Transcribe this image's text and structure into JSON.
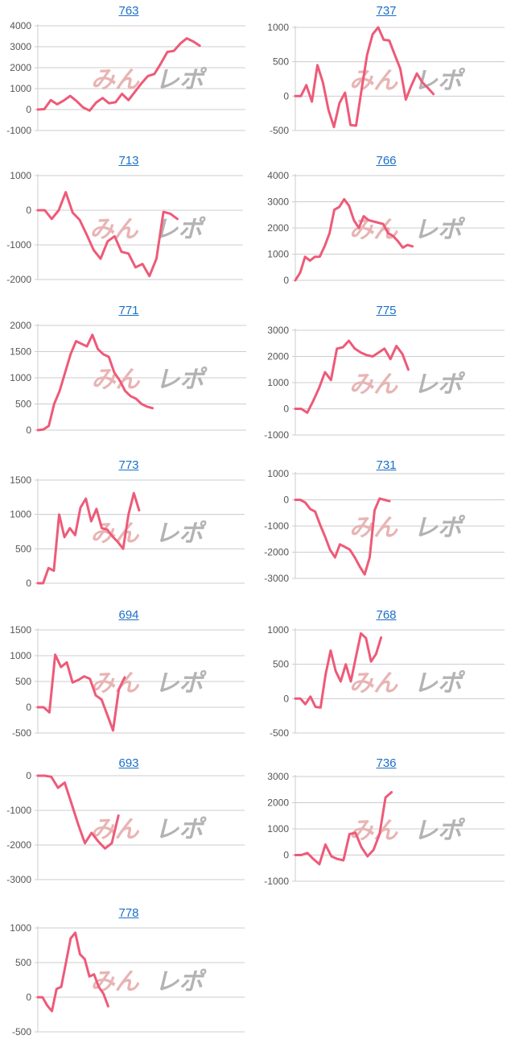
{
  "colors": {
    "line": "#ee5a78",
    "title": "#1a6fc9",
    "axis": "#cccccc",
    "tick_text": "#555555",
    "watermark_red": "#e8b4b4",
    "watermark_gray": "#b3b3b3"
  },
  "watermark": {
    "part1": "みん",
    "part2": "レポ"
  },
  "chart_data": [
    {
      "type": "line",
      "title": "763",
      "ylim": [
        -1000,
        4000
      ],
      "yticks": [
        -1000,
        0,
        1000,
        2000,
        3000,
        4000
      ],
      "y": [
        0,
        20,
        450,
        250,
        430,
        650,
        400,
        100,
        -50,
        330,
        550,
        300,
        350,
        750,
        450,
        850,
        1250,
        1600,
        1700,
        2200,
        2750,
        2800,
        3150,
        3400,
        3250,
        3050
      ]
    },
    {
      "type": "line",
      "title": "737",
      "ylim": [
        -500,
        1000
      ],
      "yticks": [
        -500,
        0,
        500,
        1000
      ],
      "y": [
        0,
        0,
        160,
        -80,
        450,
        200,
        -200,
        -450,
        -100,
        50,
        -420,
        -430,
        100,
        600,
        900,
        1000,
        820,
        810,
        600,
        400,
        -50,
        150,
        330,
        200,
        120,
        30
      ]
    },
    {
      "type": "line",
      "title": "713",
      "ylim": [
        -2000,
        1000
      ],
      "yticks": [
        -2000,
        -1000,
        0,
        1000
      ],
      "y": [
        0,
        0,
        -250,
        0,
        520,
        -70,
        -280,
        -700,
        -1150,
        -1400,
        -900,
        -750,
        -1200,
        -1250,
        -1650,
        -1550,
        -1900,
        -1400,
        -50,
        -100,
        -250
      ]
    },
    {
      "type": "line",
      "title": "766",
      "ylim": [
        0,
        4000
      ],
      "yticks": [
        0,
        1000,
        2000,
        3000,
        4000
      ],
      "y": [
        0,
        300,
        900,
        750,
        900,
        900,
        1300,
        1800,
        2700,
        2800,
        3100,
        2850,
        2300,
        2000,
        2450,
        2300,
        2250,
        2200,
        2150,
        1800,
        1700,
        1500,
        1250,
        1350,
        1300
      ]
    },
    {
      "type": "line",
      "title": "771",
      "ylim": [
        0,
        2000
      ],
      "yticks": [
        0,
        500,
        1000,
        1500,
        2000
      ],
      "y": [
        0,
        10,
        80,
        500,
        750,
        1100,
        1450,
        1700,
        1650,
        1600,
        1820,
        1550,
        1450,
        1400,
        1100,
        950,
        750,
        650,
        600,
        500,
        450,
        420
      ]
    },
    {
      "type": "line",
      "title": "775",
      "ylim": [
        -1000,
        3000
      ],
      "yticks": [
        -1000,
        0,
        1000,
        2000,
        3000
      ],
      "y": [
        0,
        0,
        -150,
        300,
        800,
        1400,
        1100,
        2300,
        2350,
        2600,
        2300,
        2150,
        2050,
        2000,
        2150,
        2300,
        1900,
        2400,
        2100,
        1500
      ]
    },
    {
      "type": "line",
      "title": "773",
      "ylim": [
        0,
        1500
      ],
      "yticks": [
        0,
        500,
        1000,
        1500
      ],
      "y": [
        0,
        0,
        220,
        180,
        1000,
        670,
        800,
        700,
        1100,
        1230,
        900,
        1080,
        800,
        780,
        680,
        600,
        500,
        1000,
        1310,
        1060
      ]
    },
    {
      "type": "line",
      "title": "731",
      "ylim": [
        -3000,
        1000
      ],
      "yticks": [
        -3000,
        -2000,
        -1000,
        0,
        1000
      ],
      "y": [
        0,
        0,
        -100,
        -350,
        -450,
        -950,
        -1400,
        -1900,
        -2200,
        -1700,
        -1800,
        -1900,
        -2200,
        -2550,
        -2850,
        -2200,
        -400,
        50,
        0,
        -50
      ]
    },
    {
      "type": "line",
      "title": "694",
      "ylim": [
        -500,
        1500
      ],
      "yticks": [
        -500,
        0,
        500,
        1000,
        1500
      ],
      "y": [
        0,
        0,
        -100,
        1020,
        780,
        870,
        480,
        530,
        600,
        550,
        230,
        150,
        -150,
        -450,
        350,
        580
      ]
    },
    {
      "type": "line",
      "title": "768",
      "ylim": [
        -500,
        1000
      ],
      "yticks": [
        -500,
        0,
        500,
        1000
      ],
      "y": [
        0,
        0,
        -80,
        30,
        -120,
        -130,
        350,
        700,
        400,
        250,
        500,
        250,
        600,
        950,
        880,
        540,
        650,
        890
      ]
    },
    {
      "type": "line",
      "title": "693",
      "ylim": [
        -3000,
        0
      ],
      "yticks": [
        -3000,
        -2000,
        -1000,
        0
      ],
      "y": [
        0,
        0,
        -30,
        -350,
        -200,
        -800,
        -1400,
        -1950,
        -1650,
        -1900,
        -2100,
        -1950,
        -1150
      ]
    },
    {
      "type": "line",
      "title": "736",
      "ylim": [
        -1000,
        3000
      ],
      "yticks": [
        -1000,
        0,
        1000,
        2000,
        3000
      ],
      "y": [
        0,
        0,
        80,
        -150,
        -350,
        400,
        -50,
        -150,
        -200,
        800,
        850,
        300,
        -50,
        200,
        800,
        2200,
        2400
      ]
    },
    {
      "type": "line",
      "title": "778",
      "ylim": [
        -500,
        1000
      ],
      "yticks": [
        -500,
        0,
        500,
        1000
      ],
      "y": [
        0,
        0,
        -120,
        -200,
        120,
        150,
        500,
        850,
        930,
        620,
        550,
        300,
        330,
        150,
        50,
        -130
      ]
    }
  ]
}
